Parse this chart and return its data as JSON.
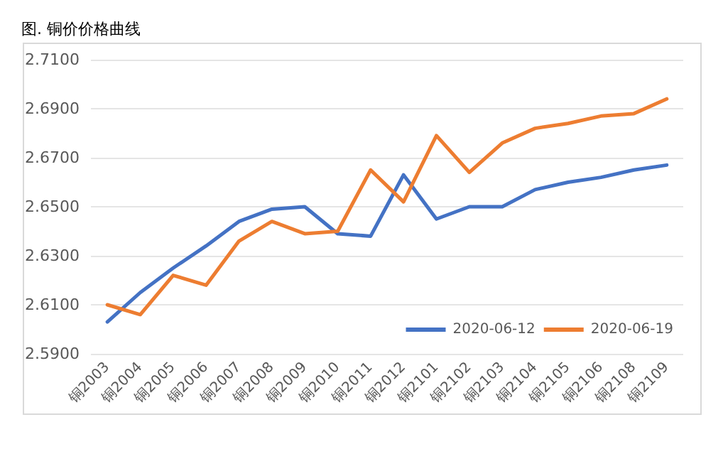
{
  "chart_data": {
    "type": "line",
    "title": "图. 铜价价格曲线",
    "categories": [
      "铜2003",
      "铜2004",
      "铜2005",
      "铜2006",
      "铜2007",
      "铜2008",
      "铜2009",
      "铜2010",
      "铜2011",
      "铜2012",
      "铜2101",
      "铜2102",
      "铜2103",
      "铜2104",
      "铜2105",
      "铜2106",
      "铜2108",
      "铜2109"
    ],
    "series": [
      {
        "name": "2020-06-12",
        "color": "#4472c4",
        "values": [
          2.603,
          2.615,
          2.625,
          2.634,
          2.644,
          2.649,
          2.65,
          2.639,
          2.638,
          2.663,
          2.645,
          2.65,
          2.65,
          2.657,
          2.66,
          2.662,
          2.665,
          2.667
        ]
      },
      {
        "name": "2020-06-19",
        "color": "#ed7d31",
        "values": [
          2.61,
          2.606,
          2.622,
          2.618,
          2.636,
          2.644,
          2.639,
          2.64,
          2.665,
          2.652,
          2.679,
          2.664,
          2.676,
          2.682,
          2.684,
          2.687,
          2.688,
          2.694
        ]
      }
    ],
    "ylim": [
      2.59,
      2.71
    ],
    "yticks": [
      {
        "value": 2.59,
        "label": "2.5900"
      },
      {
        "value": 2.61,
        "label": "2.6100"
      },
      {
        "value": 2.63,
        "label": "2.6300"
      },
      {
        "value": 2.65,
        "label": "2.6500"
      },
      {
        "value": 2.67,
        "label": "2.6700"
      },
      {
        "value": 2.69,
        "label": "2.6900"
      },
      {
        "value": 2.71,
        "label": "2.7100"
      }
    ],
    "grid": "y",
    "legend": "bottom right",
    "marker": "none",
    "line_style": "solid"
  }
}
